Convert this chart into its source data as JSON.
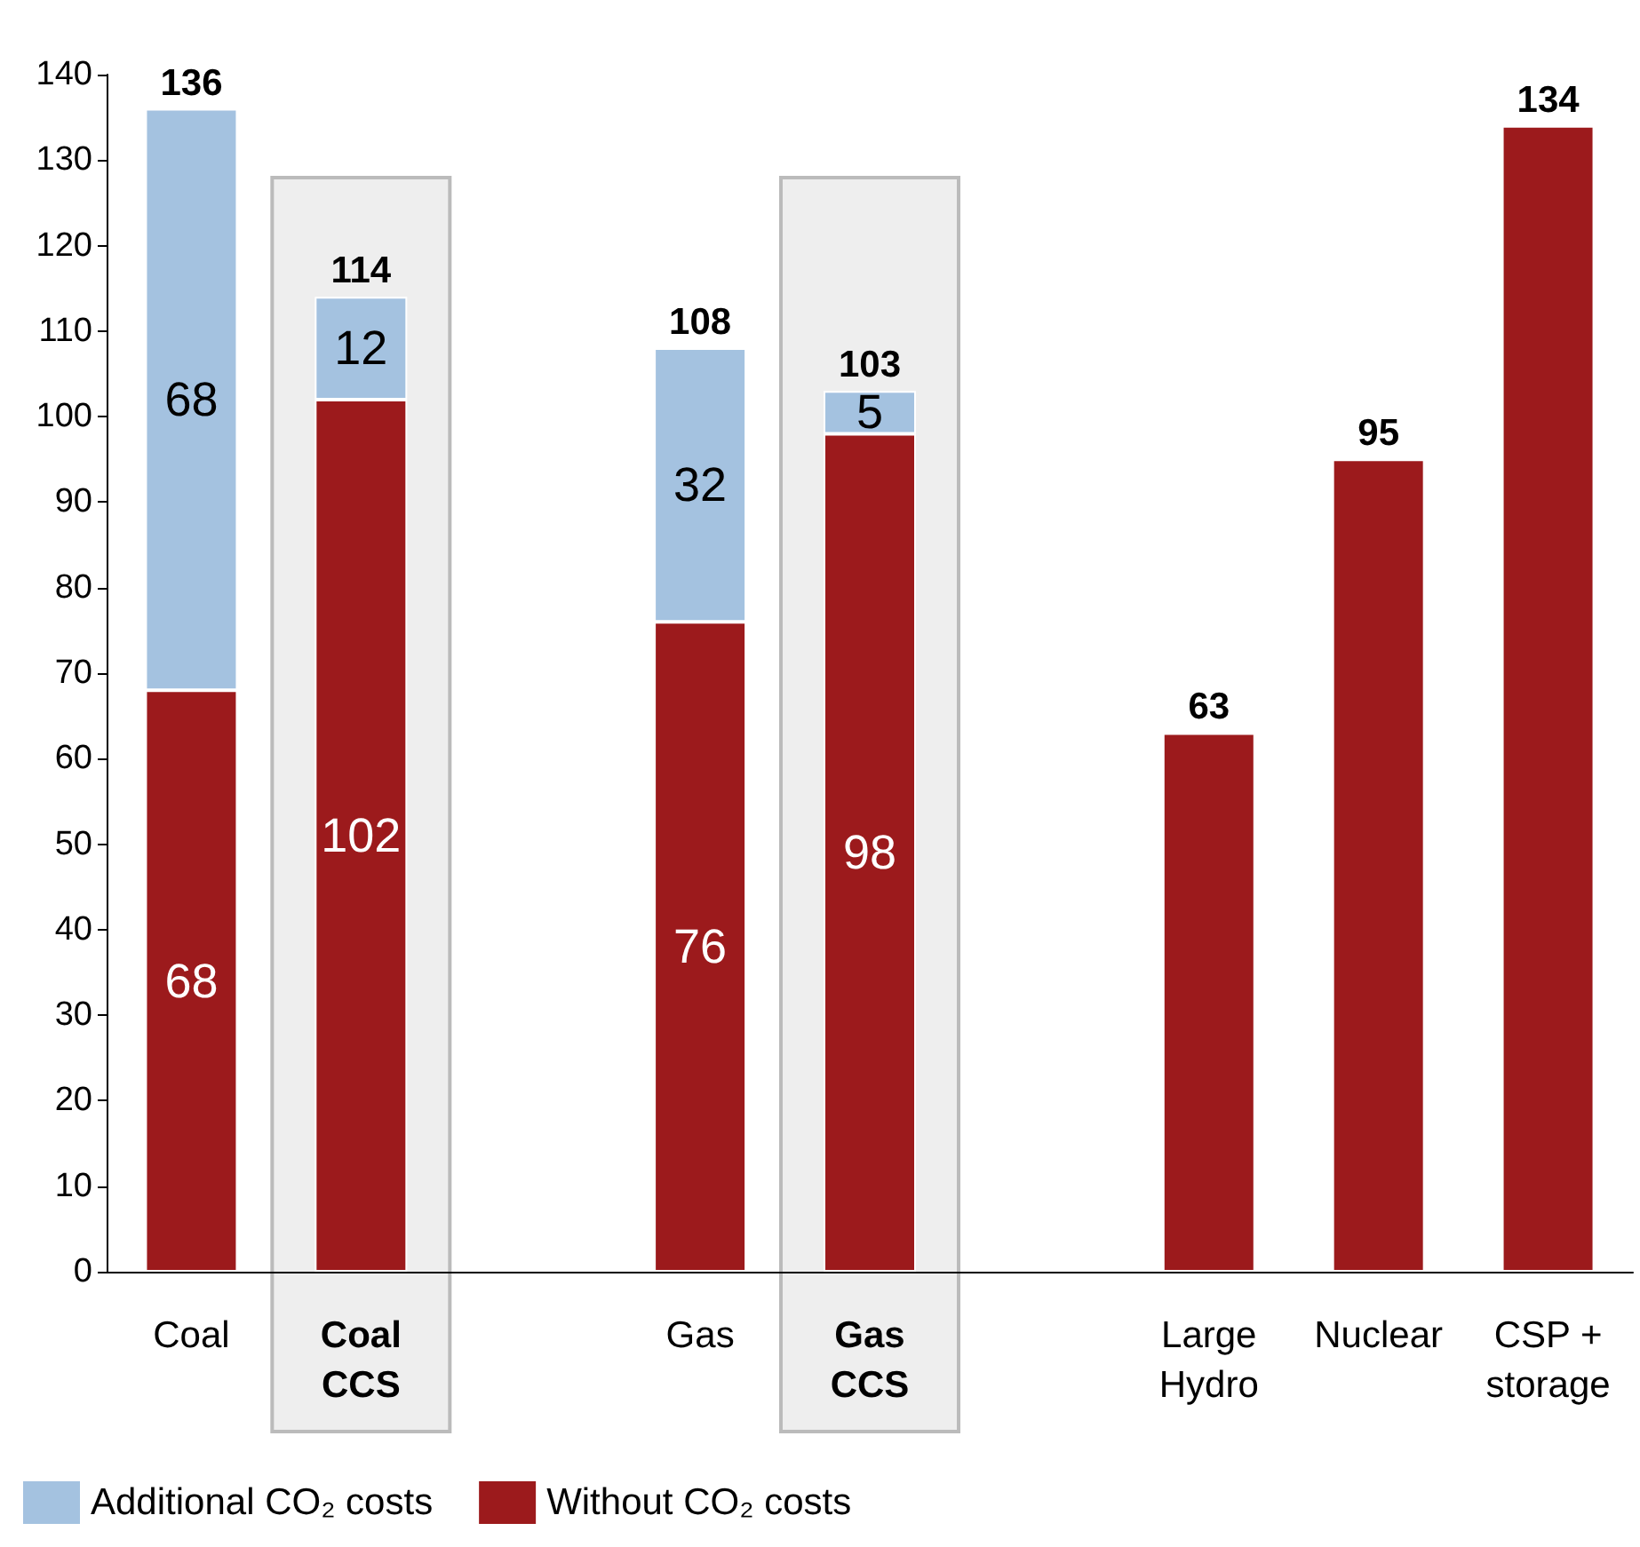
{
  "chart_data": {
    "type": "bar",
    "stacked": true,
    "categories": [
      "Coal",
      "Coal\nCCS",
      null,
      "Gas",
      "Gas\nCCS",
      null,
      "Large\nHydro",
      "Nuclear",
      "CSP +\nstorage"
    ],
    "series": [
      {
        "name": "Without CO₂ costs",
        "color": "#9c1a1c",
        "values": [
          68,
          102,
          null,
          76,
          98,
          null,
          63,
          95,
          134
        ],
        "value_labels": [
          "68",
          "102",
          null,
          "76",
          "98",
          null,
          null,
          null,
          null
        ]
      },
      {
        "name": "Additional CO₂ costs",
        "color": "#a4c2e0",
        "values": [
          68,
          12,
          null,
          32,
          5,
          null,
          null,
          null,
          null
        ],
        "value_labels": [
          "68",
          "12",
          null,
          "32",
          "5",
          null,
          null,
          null,
          null
        ]
      }
    ],
    "totals": [
      "136",
      "114",
      null,
      "108",
      "103",
      null,
      "63",
      "95",
      "134"
    ],
    "ylim": [
      0,
      140
    ],
    "yticks": [
      0,
      10,
      20,
      30,
      40,
      50,
      60,
      70,
      80,
      90,
      100,
      110,
      120,
      130,
      140
    ],
    "bands": [
      {
        "axis": "x",
        "from": "Coal\nCCS",
        "to": "Coal\nCCS",
        "color": "#eeeeee"
      },
      {
        "axis": "x",
        "from": "Gas\nCCS",
        "to": "Gas\nCCS",
        "color": "#eeeeee"
      }
    ],
    "grid": false,
    "legend": "bottom left"
  }
}
